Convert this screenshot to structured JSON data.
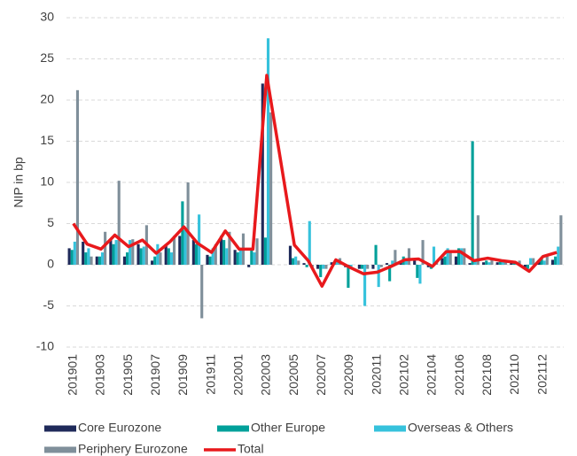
{
  "chart_data": {
    "type": "bar",
    "y_label": "NIP in bp",
    "categories": [
      "201901",
      null,
      "201903",
      null,
      "201905",
      null,
      "201907",
      null,
      "201909",
      null,
      "201911",
      null,
      "202001",
      null,
      "202003",
      null,
      "202005",
      null,
      "202007",
      null,
      "202009",
      null,
      "202011",
      null,
      "202102",
      null,
      "202104",
      null,
      "202106",
      null,
      "202108",
      null,
      "202110",
      null,
      "202112",
      null
    ],
    "ylim": [
      -10,
      30
    ],
    "yticks": [
      -10,
      -5,
      0,
      5,
      10,
      15,
      20,
      25,
      30
    ],
    "grid": true,
    "legend": "bottom",
    "series": [
      {
        "name": "Core Eurozone",
        "color": "#1f2a5a",
        "values": [
          2.0,
          2.8,
          1.0,
          3.0,
          1.0,
          2.5,
          0.5,
          2.5,
          3.5,
          3.0,
          1.2,
          3.5,
          1.8,
          -0.3,
          22,
          0,
          2.3,
          0.2,
          -0.5,
          0.3,
          -0.3,
          -0.5,
          -0.5,
          0.2,
          0.4,
          0.5,
          -0.3,
          0.8,
          1.0,
          0.2,
          0.3,
          0.3,
          0.2,
          -0.3,
          0.5,
          0.6
        ]
      },
      {
        "name": "Other Europe",
        "color": "#00a09a",
        "values": [
          1.8,
          1.5,
          1.0,
          2.5,
          1.5,
          2.0,
          1.0,
          2.0,
          7.7,
          2.5,
          1.0,
          3.0,
          1.5,
          1.8,
          3.3,
          0,
          0.8,
          -0.3,
          -1.5,
          0.4,
          -2.8,
          -0.5,
          2.4,
          -2.0,
          1.0,
          -1.6,
          -0.5,
          1.0,
          2.0,
          15.0,
          0.5,
          0.5,
          0.3,
          -0.5,
          0.8,
          1.0
        ]
      },
      {
        "name": "Overseas & Others",
        "color": "#36c2dc",
        "values": [
          2.8,
          2.0,
          1.5,
          3.0,
          3.0,
          2.2,
          2.5,
          1.5,
          4.2,
          6.1,
          2.0,
          2.0,
          2.0,
          1.5,
          27.5,
          0,
          1.0,
          5.3,
          -0.5,
          0.5,
          -0.5,
          -5.0,
          -2.7,
          0.5,
          0.8,
          -2.3,
          2.2,
          2.0,
          2.0,
          0.5,
          0.3,
          0.5,
          0.3,
          0.8,
          0.5,
          2.2
        ]
      },
      {
        "name": "Periphery Eurozone",
        "color": "#7f8f9a",
        "values": [
          21.2,
          1.0,
          4.0,
          10.2,
          3.1,
          4.8,
          1.5,
          3.5,
          10.0,
          -6.5,
          2.5,
          4.0,
          3.8,
          3.2,
          18.5,
          0,
          0.5,
          -0.3,
          -0.5,
          0.8,
          0.0,
          -0.5,
          -0.3,
          1.8,
          2.0,
          3.0,
          0.3,
          1.5,
          2.0,
          6.0,
          0.8,
          0.3,
          0.5,
          0.8,
          1.0,
          6.0
        ]
      },
      {
        "name": "Total",
        "type": "line",
        "color": "#e8191c",
        "values": [
          5.0,
          2.5,
          1.9,
          3.6,
          2.2,
          3.0,
          1.4,
          2.8,
          4.6,
          2.6,
          1.5,
          4.1,
          1.9,
          1.9,
          23.0,
          12.7,
          2.4,
          0.5,
          -2.6,
          0.6,
          -0.3,
          -1.1,
          -0.9,
          -0.2,
          0.6,
          0.7,
          -0.2,
          1.6,
          1.6,
          0.5,
          0.8,
          0.5,
          0.3,
          -0.8,
          1.0,
          1.5
        ]
      }
    ]
  }
}
